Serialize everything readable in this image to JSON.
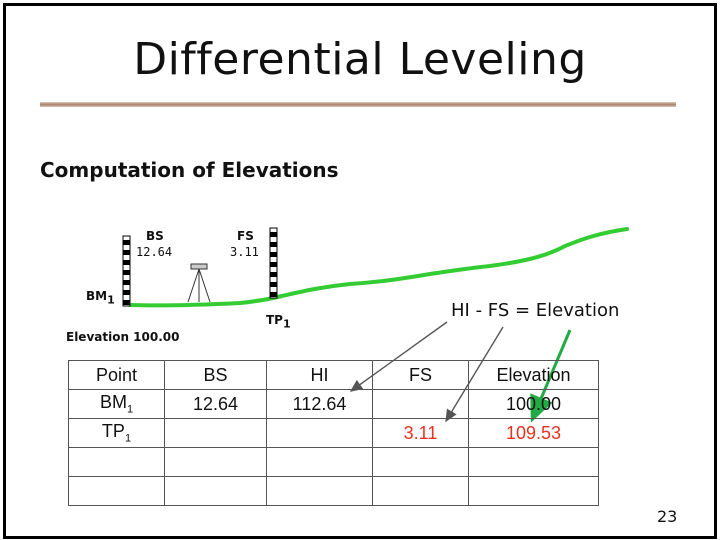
{
  "slide": {
    "title": "Differential Leveling",
    "heading": "Computation of Elevations",
    "page_number": "23"
  },
  "diagram": {
    "bs_label": "BS",
    "bs_value": "12.64",
    "fs_label": "FS",
    "fs_value": "3.11",
    "bm_label": "BM",
    "bm_sub": "1",
    "tp_label": "TP",
    "tp_sub": "1",
    "elevation_label": "Elevation 100.00",
    "formula": "HI - FS = Elevation"
  },
  "table": {
    "headers": [
      "Point",
      "BS",
      "HI",
      "FS",
      "Elevation"
    ],
    "rows": [
      {
        "point": "BM",
        "point_sub": "1",
        "bs": "12.64",
        "hi": "112.64",
        "fs": "",
        "elevation": "100.00"
      },
      {
        "point": "TP",
        "point_sub": "1",
        "bs": "",
        "hi": "",
        "fs": "3.11",
        "elevation": "109.53"
      },
      {
        "point": "",
        "point_sub": "",
        "bs": "",
        "hi": "",
        "fs": "",
        "elevation": ""
      },
      {
        "point": "",
        "point_sub": "",
        "bs": "",
        "hi": "",
        "fs": "",
        "elevation": ""
      }
    ]
  },
  "colors": {
    "ground": "#33cc33",
    "highlight": "#e8321f",
    "arrow_green": "#22aa44"
  }
}
